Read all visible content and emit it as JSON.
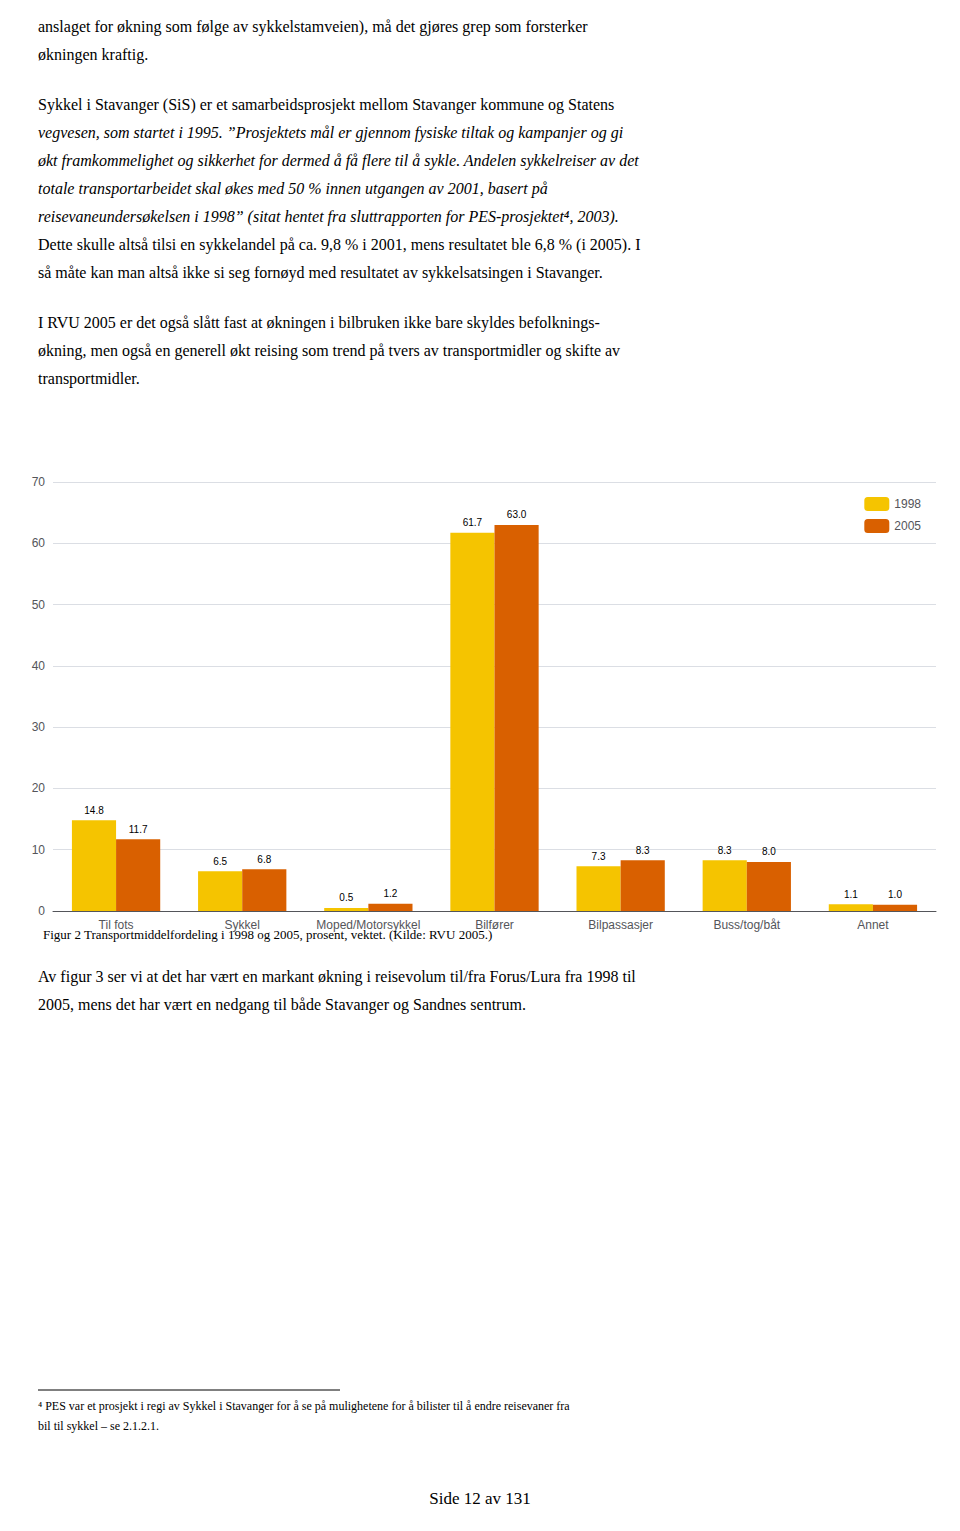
{
  "chart_data": {
    "type": "bar",
    "title": "Figur 2 Transportmiddelfordeling i 1998 og 2005, prosent, vektet. (Kilde: RVU 2005.)",
    "categories": [
      "Til fots",
      "Sykkel",
      "Moped/Motorsykkel",
      "Bilfører",
      "Bilpassasjer",
      "Buss/tog/båt",
      "Annet"
    ],
    "series": [
      {
        "name": "1998",
        "color": "#F5C400",
        "values": [
          14.8,
          6.5,
          0.5,
          61.7,
          7.3,
          8.3,
          1.1
        ]
      },
      {
        "name": "2005",
        "color": "#D96000",
        "values": [
          11.7,
          6.8,
          1.2,
          63.0,
          8.3,
          8.0,
          1.0
        ],
        "value_labels": [
          "11.7",
          "6.8",
          "1.2",
          "63.0",
          "8.3",
          "8.0",
          "1.0"
        ]
      }
    ],
    "ylim": [
      0,
      70
    ],
    "yticks": [
      0,
      10,
      20,
      30,
      40,
      50,
      60,
      70
    ],
    "grid": true,
    "legend": "upper right",
    "data_labels": true,
    "annotations": [
      "anslaget for økning som følge av sykkelstamveien), må det gjøres grep som forsterker",
      "økningen kraftig.",
      "Sykkel i Stavanger (SiS) er et samarbeidsprosjekt mellom Stavanger kommune og Statens",
      "vegvesen, som startet i 1995. ”Prosjektets mål er gjennom fysiske tiltak og kampanjer og gi",
      "økt framkommelighet og sikkerhet for dermed å få flere til å sykle. Andelen sykkelreiser av det",
      "totale transportarbeidet skal økes med 50 % innen utgangen av 2001, basert på",
      "reisevaneundersøkelsen i 1998” (sitat hentet fra sluttrapporten for PES-prosjektet⁴, 2003).",
      "Dette skulle altså tilsi en sykkelandel på ca. 9,8 % i 2001, mens resultatet ble 6,8 % (i 2005). I",
      "så måte kan man altså ikke si seg fornøyd med resultatet av sykkelsatsingen i Stavanger.",
      "I RVU 2005 er det også slått fast at økningen i bilbruken ikke bare skyldes befolknings-",
      "økning, men også en generell økt reising som trend på tvers av transportmidler og skifte av",
      "transportmidler.",
      "Av figur 3 ser vi at det har vært en markant økning i reisevolum til/fra Forus/Lura fra 1998 til",
      "2005, mens det har vært en nedgang til både Stavanger og Sandnes sentrum.",
      "⁴ PES var et prosjekt i regi av Sykkel i Stavanger for å se på mulighetene for å bilister til å endre reisevaner fra",
      "bil til sykkel – se 2.1.2.1.",
      "Side 12 av 131"
    ]
  }
}
